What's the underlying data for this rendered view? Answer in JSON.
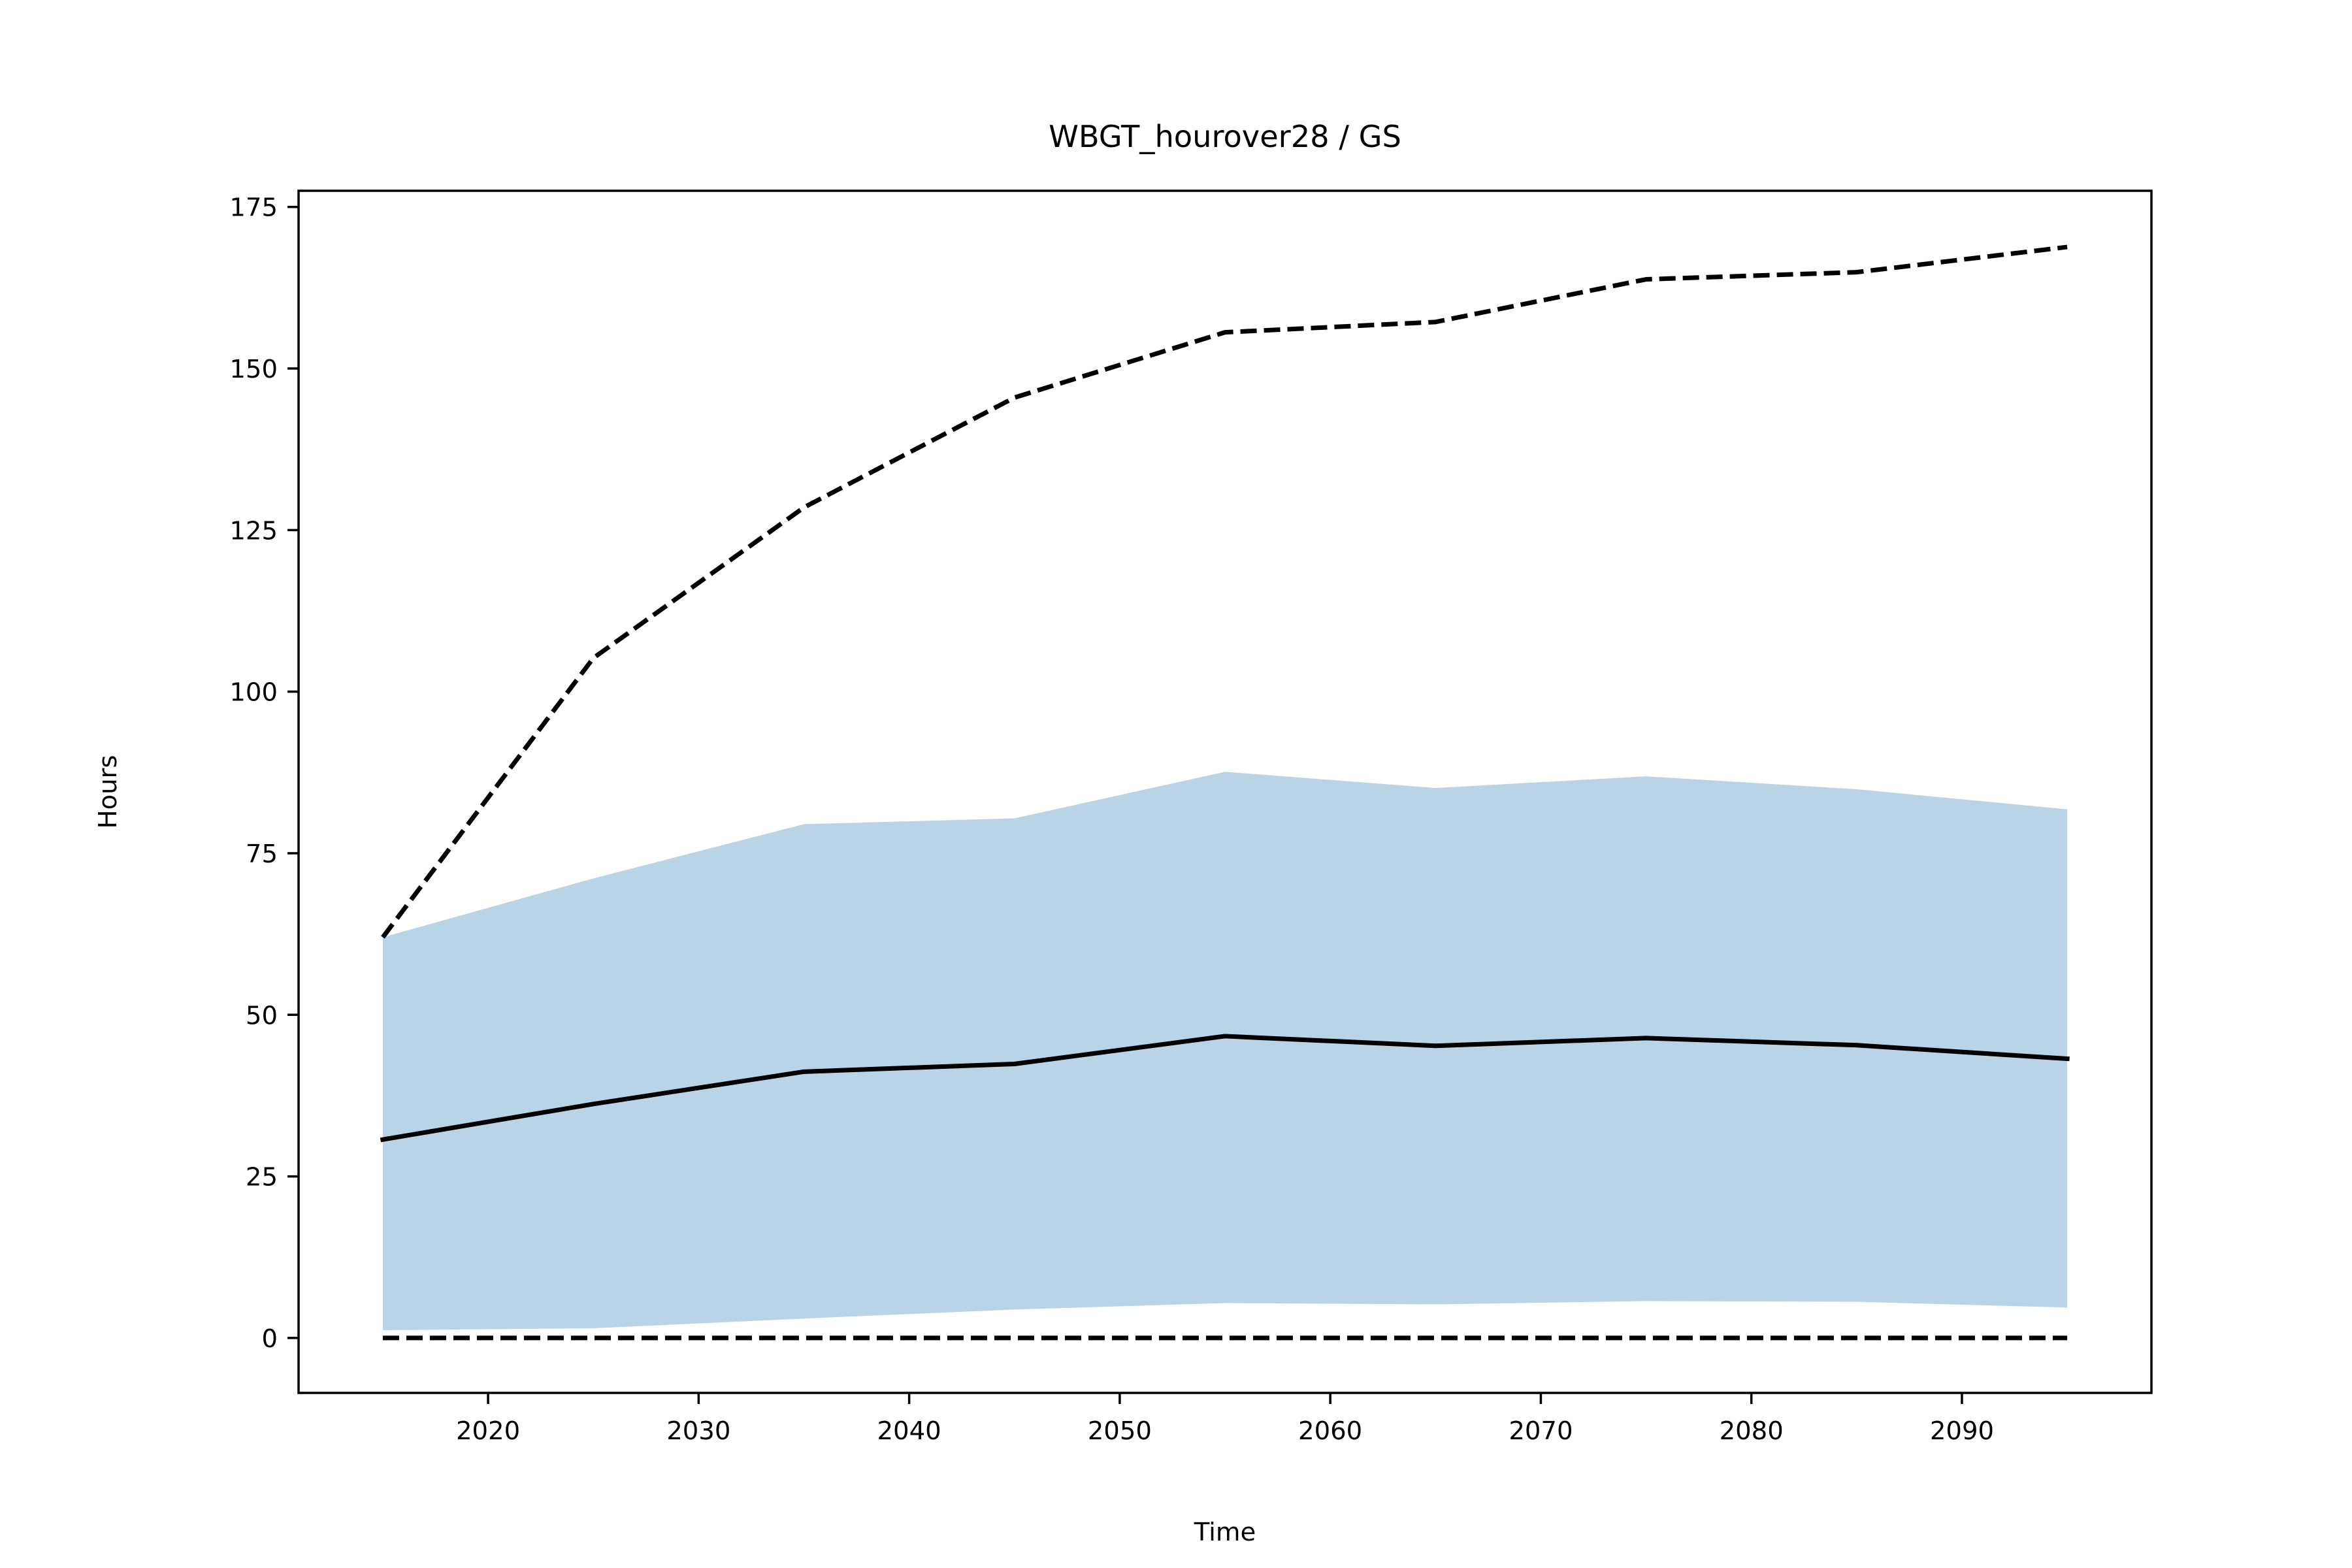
{
  "chart_data": {
    "type": "line",
    "title": "WBGT_hourover28 / GS",
    "xlabel": "Time",
    "ylabel": "Hours",
    "xlim": [
      2011,
      2099
    ],
    "ylim": [
      -8.5,
      177.5
    ],
    "xticks": [
      2020,
      2030,
      2040,
      2050,
      2060,
      2070,
      2080,
      2090
    ],
    "yticks": [
      0,
      25,
      50,
      75,
      100,
      125,
      150,
      175
    ],
    "x": [
      2015,
      2025,
      2035,
      2045,
      2055,
      2065,
      2075,
      2085,
      2095
    ],
    "band": {
      "color": "#bad4e7",
      "lower": [
        1.2,
        1.5,
        3.0,
        4.4,
        5.4,
        5.2,
        5.7,
        5.6,
        4.7
      ],
      "upper": [
        62.0,
        71.1,
        79.5,
        80.4,
        87.6,
        85.1,
        86.9,
        84.9,
        81.8
      ]
    },
    "series": [
      {
        "style": "solid",
        "color": "#000000",
        "values": [
          30.7,
          36.2,
          41.2,
          42.4,
          46.7,
          45.2,
          46.4,
          45.3,
          43.2
        ]
      },
      {
        "style": "dashed",
        "color": "#000000",
        "values": [
          62.0,
          105.2,
          128.5,
          145.5,
          155.6,
          157.2,
          163.8,
          164.9,
          168.8
        ]
      },
      {
        "style": "dashed",
        "color": "#000000",
        "values": [
          0,
          0,
          0,
          0,
          0,
          0,
          0,
          0,
          0
        ]
      }
    ]
  }
}
